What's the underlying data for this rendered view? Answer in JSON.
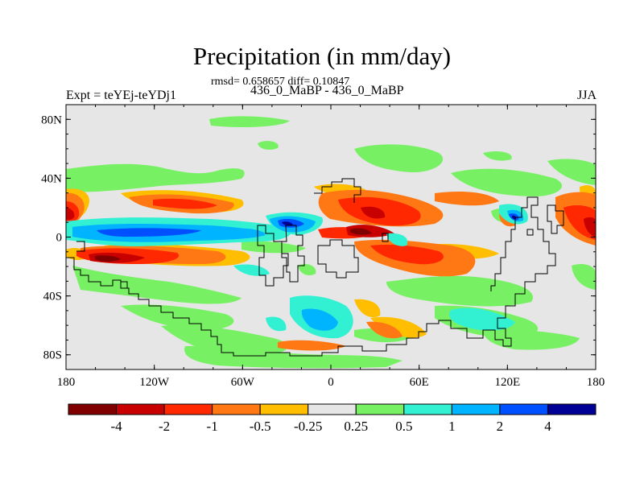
{
  "header": {
    "title": "Precipitation (in mm/day)",
    "stats": "rmsd= 0.658657 diff= 0.10847",
    "left_subtitle": "Expt = teYEj-teYDj1",
    "center_subtitle": "436_0_MaBP - 436_0_MaBP",
    "right_subtitle": "JJA"
  },
  "axes": {
    "y_ticks": [
      {
        "label": "80N",
        "value": 80
      },
      {
        "label": "40N",
        "value": 40
      },
      {
        "label": "0",
        "value": 0
      },
      {
        "label": "40S",
        "value": -40
      },
      {
        "label": "80S",
        "value": -80
      }
    ],
    "x_ticks": [
      {
        "label": "180",
        "value": -180
      },
      {
        "label": "120W",
        "value": -120
      },
      {
        "label": "60W",
        "value": -60
      },
      {
        "label": "0",
        "value": 0
      },
      {
        "label": "60E",
        "value": 60
      },
      {
        "label": "120E",
        "value": 120
      },
      {
        "label": "180",
        "value": 180
      }
    ]
  },
  "colorbar": {
    "colors": [
      "#800000",
      "#c80000",
      "#ff2800",
      "#ff7814",
      "#ffbe00",
      "#e6e6e6",
      "#78f064",
      "#32f0d2",
      "#00b4ff",
      "#0050ff",
      "#000096"
    ],
    "labels": [
      "-4",
      "-2",
      "-1",
      "-0.5",
      "-0.25",
      "0.25",
      "0.5",
      "1",
      "2",
      "4"
    ]
  },
  "colors": {
    "background_fill": "#e6e6e6",
    "coastline": "#000000"
  }
}
